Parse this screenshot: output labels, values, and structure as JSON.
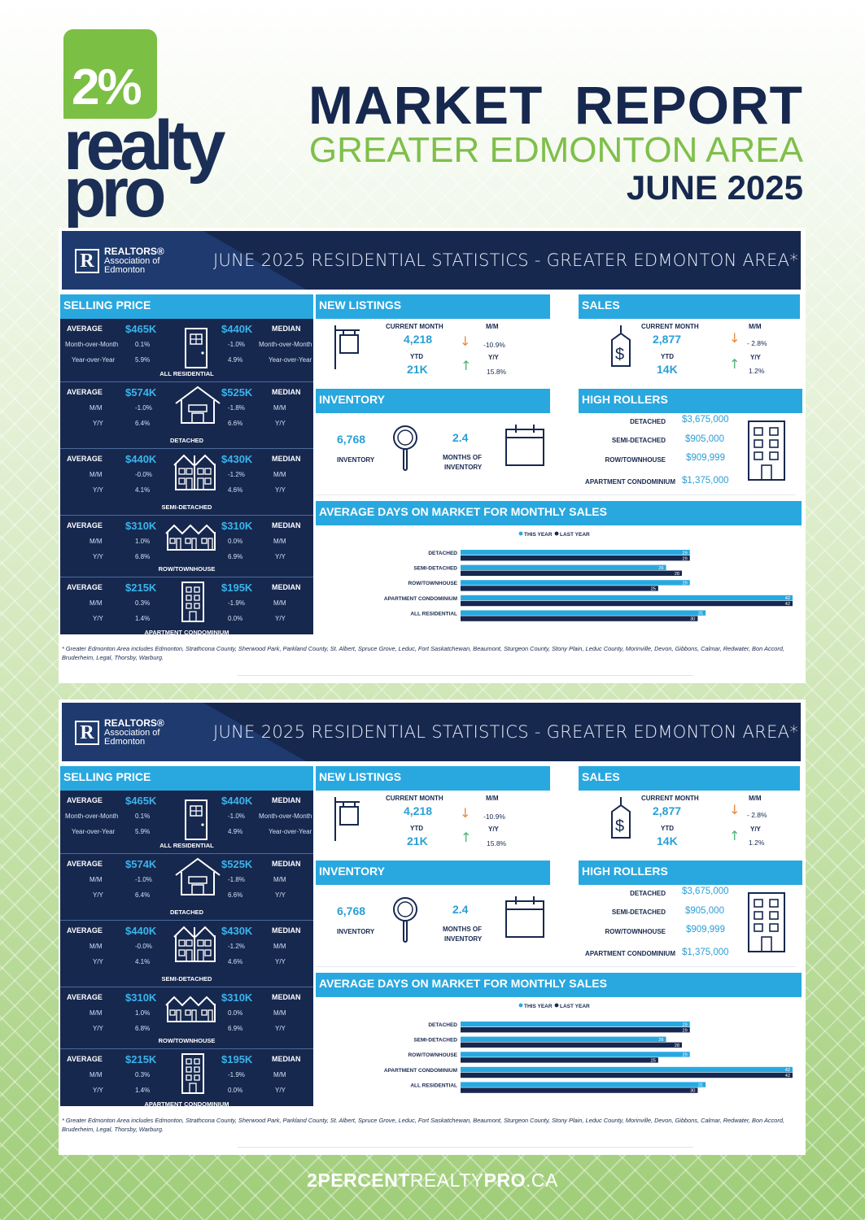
{
  "logo": {
    "pct": "2%",
    "word1": "realty",
    "word2": "pro"
  },
  "header": {
    "title": "MARKET  REPORT",
    "subtitle": "GREATER EDMONTON AREA",
    "date": "JUNE 2025"
  },
  "report": {
    "org_line1": "REALTORS®",
    "org_line2": "Association of",
    "org_line3": "Edmonton",
    "banner_title": "JUNE 2025 RESIDENTIAL STATISTICS - GREATER EDMONTON AREA*",
    "selling_price": {
      "heading": "SELLING PRICE",
      "rows": [
        {
          "left_label": "AVERAGE",
          "avg": "$465K",
          "median": "$440K",
          "right_label": "MEDIAN",
          "l1": "Month-over-Month",
          "l2": "Year-over-Year",
          "r1": "Month-over-Month",
          "r2": "Year-over-Year",
          "avg_m": "0.1%",
          "avg_y": "5.9%",
          "med_m": "-1.0%",
          "med_y": "4.9%",
          "caption": "ALL RESIDENTIAL"
        },
        {
          "left_label": "AVERAGE",
          "avg": "$574K",
          "median": "$525K",
          "right_label": "MEDIAN",
          "l1": "M/M",
          "l2": "Y/Y",
          "r1": "M/M",
          "r2": "Y/Y",
          "avg_m": "-1.0%",
          "avg_y": "6.4%",
          "med_m": "-1.8%",
          "med_y": "6.6%",
          "caption": "DETACHED"
        },
        {
          "left_label": "AVERAGE",
          "avg": "$440K",
          "median": "$430K",
          "right_label": "MEDIAN",
          "l1": "M/M",
          "l2": "Y/Y",
          "r1": "M/M",
          "r2": "Y/Y",
          "avg_m": "-0.0%",
          "avg_y": "4.1%",
          "med_m": "-1.2%",
          "med_y": "4.6%",
          "caption": "SEMI-DETACHED"
        },
        {
          "left_label": "AVERAGE",
          "avg": "$310K",
          "median": "$310K",
          "right_label": "MEDIAN",
          "l1": "M/M",
          "l2": "Y/Y",
          "r1": "M/M",
          "r2": "Y/Y",
          "avg_m": "1.0%",
          "avg_y": "6.8%",
          "med_m": "0.0%",
          "med_y": "6.9%",
          "caption": "ROW/TOWNHOUSE"
        },
        {
          "left_label": "AVERAGE",
          "avg": "$215K",
          "median": "$195K",
          "right_label": "MEDIAN",
          "l1": "M/M",
          "l2": "Y/Y",
          "r1": "M/M",
          "r2": "Y/Y",
          "avg_m": "0.3%",
          "avg_y": "1.4%",
          "med_m": "-1.9%",
          "med_y": "0.0%",
          "caption": "APARTMENT CONDOMINIUM"
        }
      ]
    },
    "new_listings": {
      "heading": "NEW  LISTINGS",
      "cm_label": "CURRENT MONTH",
      "cm": "4,218",
      "ytd_label": "YTD",
      "ytd": "21K",
      "mm_label": "M/M",
      "mm": "-10.9%",
      "yy_label": "Y/Y",
      "yy": "15.8%"
    },
    "sales": {
      "heading": "SALES",
      "cm_label": "CURRENT MONTH",
      "cm": "2,877",
      "ytd_label": "YTD",
      "ytd": "14K",
      "mm_label": "M/M",
      "mm": "- 2.8%",
      "yy_label": "Y/Y",
      "yy": "1.2%"
    },
    "inventory": {
      "heading": "INVENTORY",
      "value": "6,768",
      "label": "INVENTORY",
      "months": "2.4",
      "months_label1": "MONTHS OF",
      "months_label2": "INVENTORY"
    },
    "high_rollers": {
      "heading": "HIGH ROLLERS",
      "rows": [
        {
          "label": "DETACHED",
          "value": "$3,675,000"
        },
        {
          "label": "SEMI-DETACHED",
          "value": "$905,000"
        },
        {
          "label": "ROW/TOWNHOUSE",
          "value": "$909,999"
        },
        {
          "label": "APARTMENT CONDOMINIUM",
          "value": "$1,375,000"
        }
      ]
    },
    "dom_heading": "AVERAGE DAYS ON MARKET FOR MONTHLY SALES",
    "footnote": "* Greater Edmonton Area includes Edmonton, Strathcona County, Sherwood Park, Parkland County, St. Albert, Spruce Grove, Leduc, Fort Saskatchewan, Beaumont, Sturgeon County, Stony Plain, Leduc County, Morinville, Devon, Gibbons, Calmar, Redwater, Bon Accord, Bruderheim, Legal, Thorsby, Warburg."
  },
  "chart_data": {
    "type": "bar",
    "orientation": "horizontal",
    "categories": [
      "DETACHED",
      "SEMI-DETACHED",
      "ROW/TOWNHOUSE",
      "APARTMENT CONDOMINIUM",
      "ALL RESIDENTIAL"
    ],
    "series": [
      {
        "name": "THIS YEAR",
        "values": [
          29,
          26,
          29,
          42,
          31
        ],
        "color": "#29a8e0"
      },
      {
        "name": "LAST YEAR",
        "values": [
          29,
          28,
          25,
          42,
          30
        ],
        "color": "#17284f"
      }
    ],
    "legend": "top-center",
    "xlim": [
      0,
      42
    ]
  },
  "footer": {
    "bold1": "2PERCENT",
    "light": "REALTY",
    "bold2": "PRO",
    ".ca": ".CA"
  }
}
